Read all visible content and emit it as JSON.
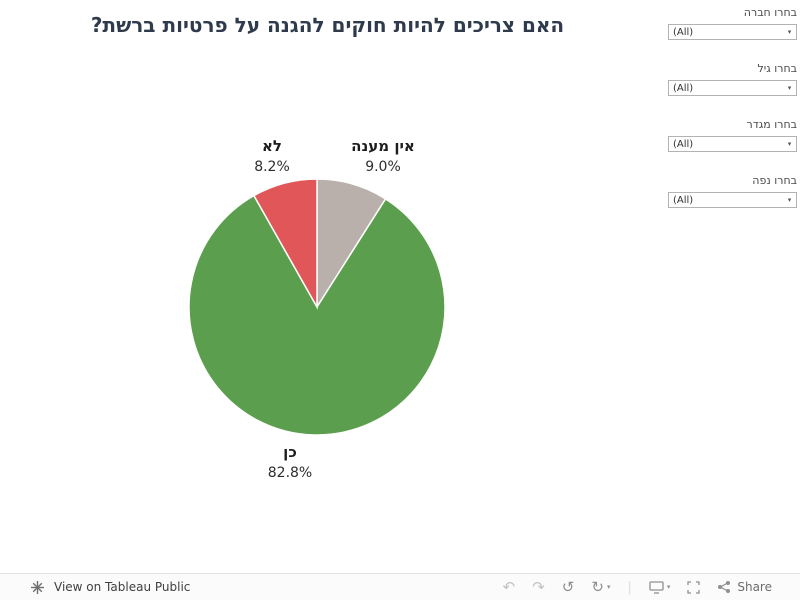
{
  "title": "האם צריכים להיות חוקים להגנה על פרטיות ברשת?",
  "filters": [
    {
      "label": "בחרו חברה",
      "value": "(All)"
    },
    {
      "label": "בחרו גיל",
      "value": "(All)"
    },
    {
      "label": "בחרו מגדר",
      "value": "(All)"
    },
    {
      "label": "בחרו נפה",
      "value": "(All)"
    }
  ],
  "chart_data": {
    "type": "pie",
    "title": "האם צריכים להיות חוקים להגנה על פרטיות ברשת?",
    "slices": [
      {
        "label": "אין מענה",
        "value": 9.0,
        "display_value": "9.0%",
        "color": "#b9b0ab"
      },
      {
        "label": "כן",
        "value": 82.8,
        "display_value": "82.8%",
        "color": "#5b9e4d"
      },
      {
        "label": "לא",
        "value": 8.2,
        "display_value": "8.2%",
        "color": "#e15759"
      }
    ],
    "start_angle_deg": 0,
    "direction": "clockwise",
    "legend": "none"
  },
  "footer": {
    "view_on_tableau": "View on Tableau Public",
    "share": "Share"
  }
}
